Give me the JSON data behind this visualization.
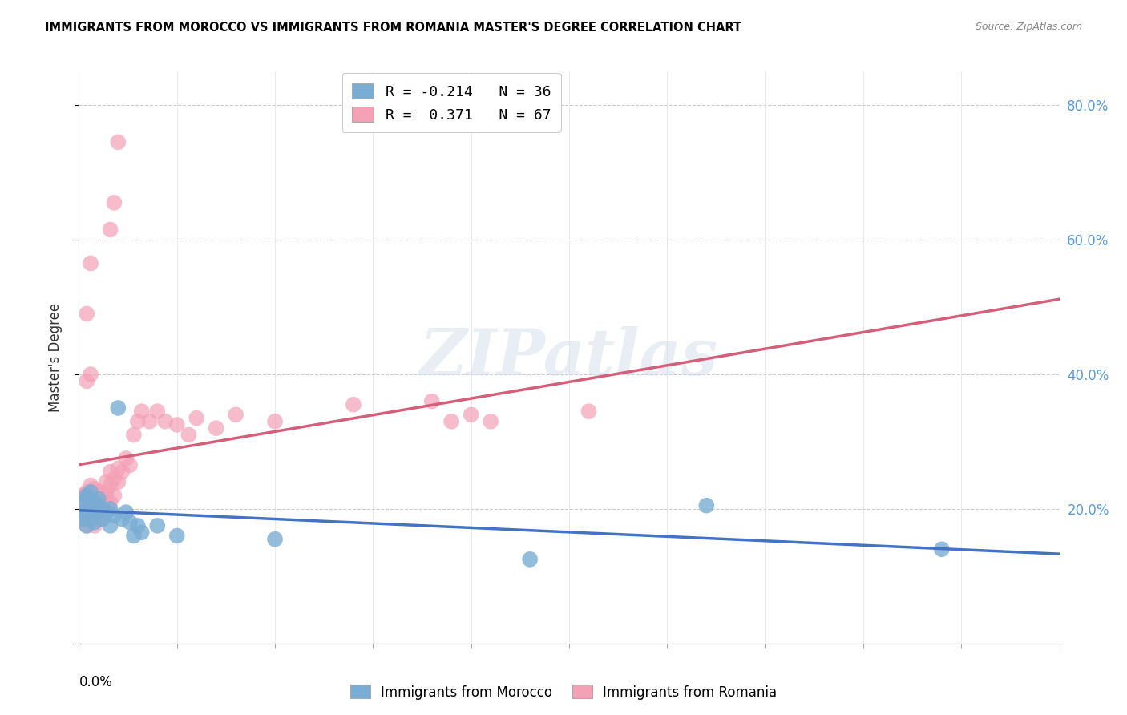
{
  "title": "IMMIGRANTS FROM MOROCCO VS IMMIGRANTS FROM ROMANIA MASTER'S DEGREE CORRELATION CHART",
  "source": "Source: ZipAtlas.com",
  "ylabel": "Master's Degree",
  "xlim": [
    0.0,
    0.25
  ],
  "ylim": [
    0.0,
    0.85
  ],
  "yticks": [
    0.0,
    0.2,
    0.4,
    0.6,
    0.8
  ],
  "ytick_labels": [
    "",
    "20.0%",
    "40.0%",
    "60.0%",
    "80.0%"
  ],
  "morocco_color": "#7aadd4",
  "morocco_line_color": "#4472c4",
  "romania_color": "#f4a0b5",
  "romania_line_color": "#d45f7a",
  "morocco_R": -0.214,
  "morocco_N": 36,
  "romania_R": 0.371,
  "romania_N": 67,
  "watermark": "ZIPatlas",
  "legend_labels": [
    "Immigrants from Morocco",
    "Immigrants from Romania"
  ],
  "morocco_x": [
    0.001,
    0.001,
    0.001,
    0.002,
    0.002,
    0.002,
    0.002,
    0.003,
    0.003,
    0.003,
    0.003,
    0.004,
    0.004,
    0.004,
    0.005,
    0.005,
    0.005,
    0.006,
    0.006,
    0.007,
    0.008,
    0.008,
    0.009,
    0.01,
    0.011,
    0.012,
    0.013,
    0.014,
    0.015,
    0.016,
    0.02,
    0.025,
    0.05,
    0.115,
    0.16,
    0.22
  ],
  "morocco_y": [
    0.195,
    0.21,
    0.185,
    0.22,
    0.2,
    0.175,
    0.215,
    0.205,
    0.195,
    0.185,
    0.225,
    0.195,
    0.21,
    0.18,
    0.205,
    0.195,
    0.215,
    0.2,
    0.185,
    0.195,
    0.2,
    0.175,
    0.19,
    0.35,
    0.185,
    0.195,
    0.18,
    0.16,
    0.175,
    0.165,
    0.175,
    0.16,
    0.155,
    0.125,
    0.205,
    0.14
  ],
  "romania_x": [
    0.001,
    0.001,
    0.001,
    0.001,
    0.001,
    0.002,
    0.002,
    0.002,
    0.002,
    0.002,
    0.002,
    0.002,
    0.003,
    0.003,
    0.003,
    0.003,
    0.003,
    0.004,
    0.004,
    0.004,
    0.004,
    0.004,
    0.005,
    0.005,
    0.005,
    0.005,
    0.006,
    0.006,
    0.006,
    0.007,
    0.007,
    0.007,
    0.008,
    0.008,
    0.008,
    0.009,
    0.009,
    0.01,
    0.01,
    0.011,
    0.012,
    0.013,
    0.014,
    0.015,
    0.016,
    0.018,
    0.02,
    0.022,
    0.025,
    0.028,
    0.03,
    0.035,
    0.04,
    0.05,
    0.07,
    0.09,
    0.095,
    0.1,
    0.105,
    0.13,
    0.002,
    0.003,
    0.008,
    0.009,
    0.01,
    0.002,
    0.003
  ],
  "romania_y": [
    0.22,
    0.215,
    0.2,
    0.21,
    0.19,
    0.225,
    0.215,
    0.205,
    0.2,
    0.195,
    0.185,
    0.175,
    0.235,
    0.22,
    0.21,
    0.195,
    0.185,
    0.23,
    0.215,
    0.205,
    0.19,
    0.175,
    0.225,
    0.215,
    0.2,
    0.185,
    0.22,
    0.205,
    0.185,
    0.215,
    0.225,
    0.24,
    0.21,
    0.235,
    0.255,
    0.22,
    0.245,
    0.24,
    0.26,
    0.255,
    0.275,
    0.265,
    0.31,
    0.33,
    0.345,
    0.33,
    0.345,
    0.33,
    0.325,
    0.31,
    0.335,
    0.32,
    0.34,
    0.33,
    0.355,
    0.36,
    0.33,
    0.34,
    0.33,
    0.345,
    0.49,
    0.565,
    0.615,
    0.655,
    0.745,
    0.39,
    0.4
  ]
}
